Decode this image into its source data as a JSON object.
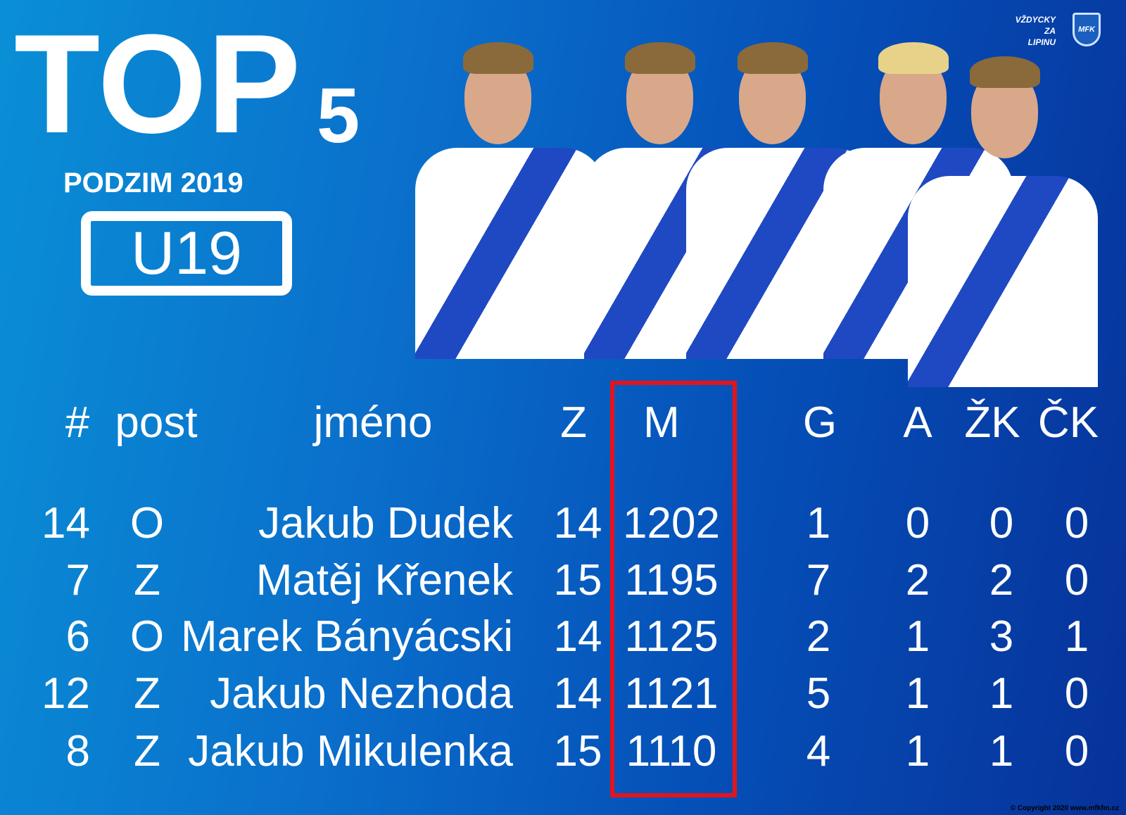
{
  "title": "TOP",
  "title_number": "5",
  "season": "PODZIM 2019",
  "category": "U19",
  "slogan": [
    "VŽDYCKY",
    "ZA",
    "LIPINU"
  ],
  "crest_text": "MFK",
  "columns": [
    "#",
    "post",
    "jméno",
    "Z",
    "M",
    "G",
    "A",
    "ŽK",
    "ČK"
  ],
  "highlighted_column": "M",
  "highlight_color": "#e4141b",
  "rows": [
    {
      "number": "14",
      "post": "O",
      "name": "Jakub Dudek",
      "z": "14",
      "m": "1202",
      "g": "1",
      "a": "0",
      "zk": "0",
      "ck": "0"
    },
    {
      "number": "7",
      "post": "Z",
      "name": "Matěj Křenek",
      "z": "15",
      "m": "1195",
      "g": "7",
      "a": "2",
      "zk": "2",
      "ck": "0"
    },
    {
      "number": "6",
      "post": "O",
      "name": "Marek Bányácski",
      "z": "14",
      "m": "1125",
      "g": "2",
      "a": "1",
      "zk": "3",
      "ck": "1"
    },
    {
      "number": "12",
      "post": "Z",
      "name": "Jakub Nezhoda",
      "z": "14",
      "m": "1121",
      "g": "5",
      "a": "1",
      "zk": "1",
      "ck": "0"
    },
    {
      "number": "8",
      "post": "Z",
      "name": "Jakub Mikulenka",
      "z": "15",
      "m": "1110",
      "g": "4",
      "a": "1",
      "zk": "1",
      "ck": "0"
    }
  ],
  "copyright": "© Copyright 2020 www.mfkfm.cz"
}
